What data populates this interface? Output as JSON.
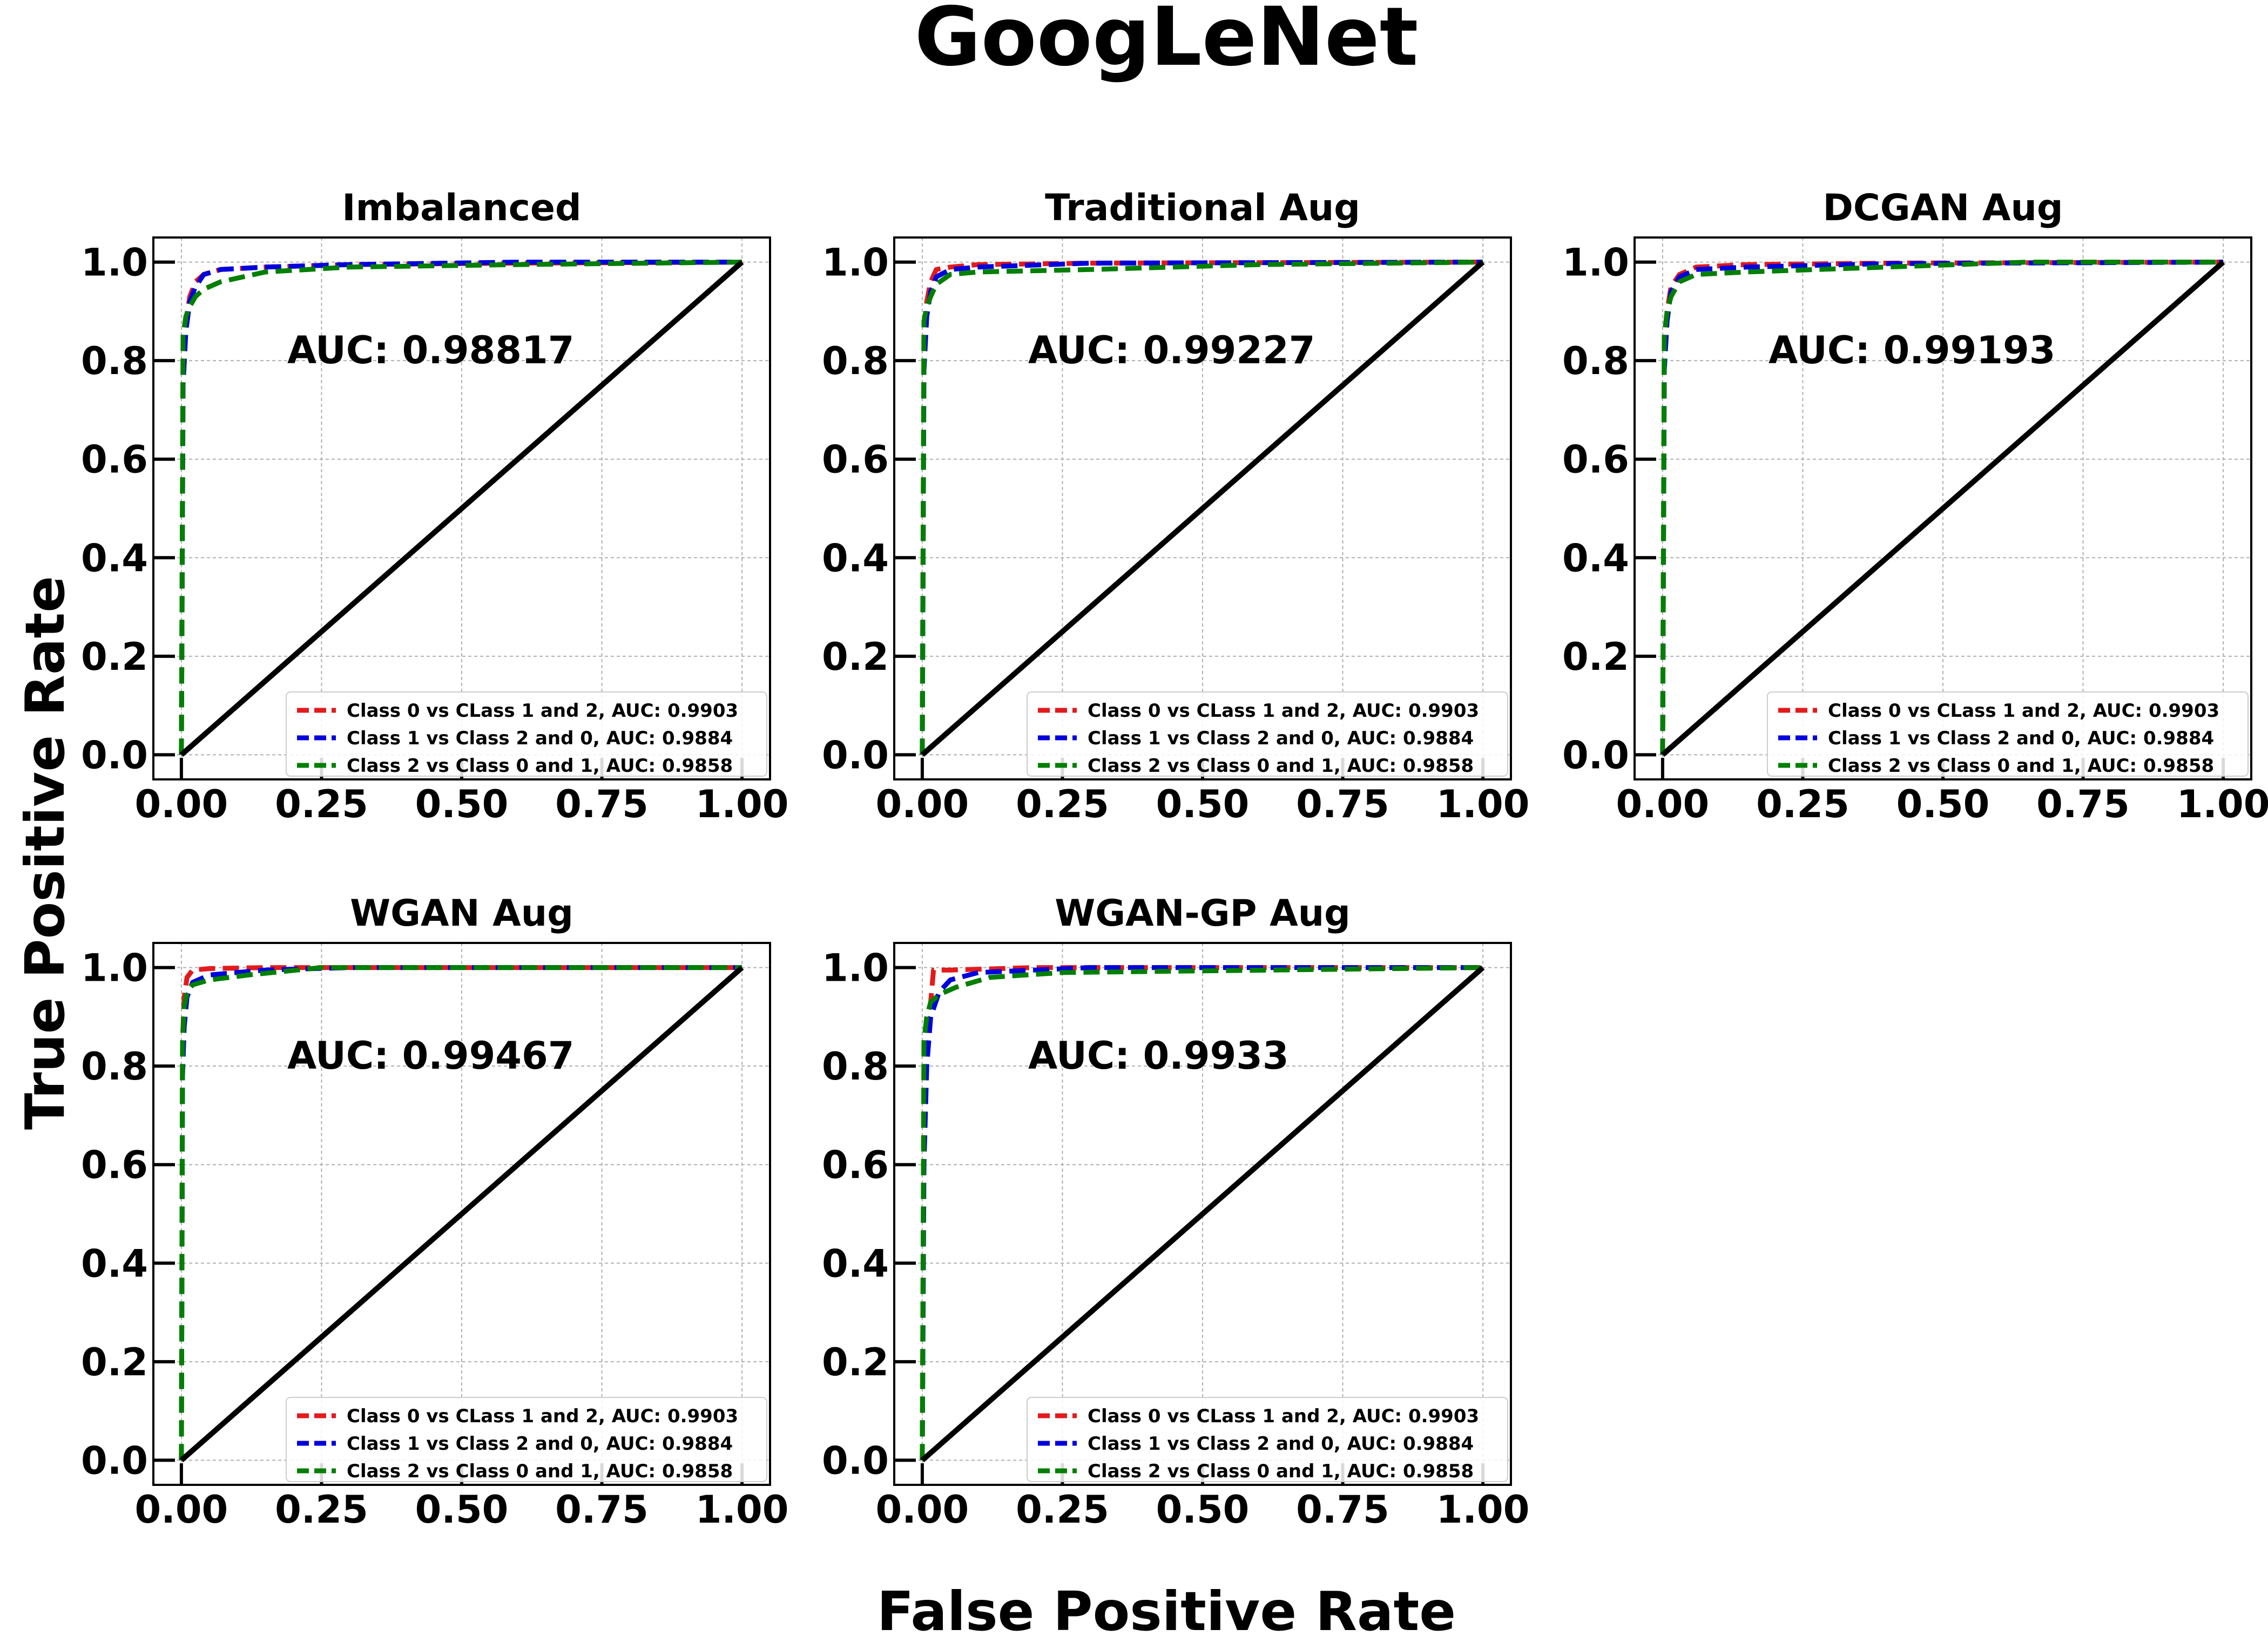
{
  "figure": {
    "suptitle": "GoogLeNet",
    "xlabel": "False Positive Rate",
    "ylabel": "True Positive Rate"
  },
  "chart_data": [
    {
      "type": "line",
      "title": "Imbalanced",
      "annotation": "AUC: 0.98817",
      "xlim": [
        -0.05,
        1.05
      ],
      "ylim": [
        -0.05,
        1.05
      ],
      "xticks": [
        0.0,
        0.25,
        0.5,
        0.75,
        1.0
      ],
      "xtick_labels": [
        "0.00",
        "0.25",
        "0.50",
        "0.75",
        "1.00"
      ],
      "yticks": [
        0.0,
        0.2,
        0.4,
        0.6,
        0.8,
        1.0
      ],
      "ytick_labels": [
        "0.0",
        "0.2",
        "0.4",
        "0.6",
        "0.8",
        "1.0"
      ],
      "grid": true,
      "legend_position": "lower-right",
      "series": [
        {
          "name": "Class 0 vs CLass 1 and 2, AUC: 0.9903",
          "color": "#e31a1c",
          "style": "dashed",
          "x": [
            0,
            0.003,
            0.008,
            0.015,
            0.025,
            0.04,
            0.07,
            0.15,
            0.3,
            0.6,
            1.0
          ],
          "y": [
            0,
            0.78,
            0.88,
            0.93,
            0.96,
            0.975,
            0.985,
            0.99,
            0.995,
            0.998,
            1.0
          ]
        },
        {
          "name": "Class 1 vs Class 2 and 0, AUC:  0.9884",
          "color": "#0000dd",
          "style": "dashed",
          "x": [
            0,
            0.003,
            0.008,
            0.015,
            0.025,
            0.04,
            0.07,
            0.15,
            0.3,
            0.6,
            1.0
          ],
          "y": [
            0,
            0.75,
            0.86,
            0.92,
            0.95,
            0.975,
            0.985,
            0.99,
            0.995,
            1.0,
            1.0
          ]
        },
        {
          "name": "Class 2 vs Class 0 and 1, AUC: 0.9858",
          "color": "#007f00",
          "style": "dashed",
          "x": [
            0,
            0.003,
            0.008,
            0.015,
            0.025,
            0.04,
            0.07,
            0.15,
            0.3,
            0.6,
            1.0
          ],
          "y": [
            0,
            0.85,
            0.89,
            0.91,
            0.93,
            0.945,
            0.96,
            0.98,
            0.99,
            0.995,
            1.0
          ]
        },
        {
          "name": "",
          "color": "#000000",
          "style": "solid",
          "x": [
            0,
            1
          ],
          "y": [
            0,
            1
          ]
        }
      ]
    },
    {
      "type": "line",
      "title": "Traditional Aug",
      "annotation": "AUC: 0.99227",
      "xlim": [
        -0.05,
        1.05
      ],
      "ylim": [
        -0.05,
        1.05
      ],
      "xticks": [
        0.0,
        0.25,
        0.5,
        0.75,
        1.0
      ],
      "xtick_labels": [
        "0.00",
        "0.25",
        "0.50",
        "0.75",
        "1.00"
      ],
      "yticks": [
        0.0,
        0.2,
        0.4,
        0.6,
        0.8,
        1.0
      ],
      "ytick_labels": [
        "0.0",
        "0.2",
        "0.4",
        "0.6",
        "0.8",
        "1.0"
      ],
      "grid": true,
      "legend_position": "lower-right",
      "series": [
        {
          "name": "Class 0 vs CLass 1 and 2, AUC: 0.9903",
          "color": "#e31a1c",
          "style": "dashed",
          "x": [
            0,
            0.003,
            0.008,
            0.015,
            0.025,
            0.05,
            0.1,
            0.3,
            1.0
          ],
          "y": [
            0,
            0.82,
            0.92,
            0.96,
            0.985,
            0.99,
            0.995,
            0.998,
            1.0
          ]
        },
        {
          "name": "Class 1 vs Class 2 and 0, AUC:  0.9884",
          "color": "#0000dd",
          "style": "dashed",
          "x": [
            0,
            0.003,
            0.008,
            0.015,
            0.025,
            0.05,
            0.1,
            0.3,
            1.0
          ],
          "y": [
            0,
            0.78,
            0.89,
            0.94,
            0.97,
            0.985,
            0.99,
            0.998,
            1.0
          ]
        },
        {
          "name": "Class 2 vs Class 0 and 1, AUC: 0.9858",
          "color": "#007f00",
          "style": "dashed",
          "x": [
            0,
            0.003,
            0.008,
            0.015,
            0.025,
            0.05,
            0.1,
            0.3,
            0.6,
            1.0
          ],
          "y": [
            0,
            0.88,
            0.91,
            0.93,
            0.955,
            0.975,
            0.98,
            0.985,
            0.995,
            1.0
          ]
        },
        {
          "name": "",
          "color": "#000000",
          "style": "solid",
          "x": [
            0,
            1
          ],
          "y": [
            0,
            1
          ]
        }
      ]
    },
    {
      "type": "line",
      "title": "DCGAN Aug",
      "annotation": "AUC: 0.99193",
      "xlim": [
        -0.05,
        1.05
      ],
      "ylim": [
        -0.05,
        1.05
      ],
      "xticks": [
        0.0,
        0.25,
        0.5,
        0.75,
        1.0
      ],
      "xtick_labels": [
        "0.00",
        "0.25",
        "0.50",
        "0.75",
        "1.00"
      ],
      "yticks": [
        0.0,
        0.2,
        0.4,
        0.6,
        0.8,
        1.0
      ],
      "ytick_labels": [
        "0.0",
        "0.2",
        "0.4",
        "0.6",
        "0.8",
        "1.0"
      ],
      "grid": true,
      "legend_position": "lower-right",
      "series": [
        {
          "name": "Class 0 vs CLass 1 and 2, AUC: 0.9903",
          "color": "#e31a1c",
          "style": "dashed",
          "x": [
            0,
            0.003,
            0.008,
            0.015,
            0.03,
            0.06,
            0.15,
            0.4,
            1.0
          ],
          "y": [
            0,
            0.8,
            0.9,
            0.95,
            0.975,
            0.99,
            0.995,
            0.998,
            1.0
          ]
        },
        {
          "name": "Class 1 vs Class 2 and 0, AUC:  0.9884",
          "color": "#0000dd",
          "style": "dashed",
          "x": [
            0,
            0.003,
            0.008,
            0.015,
            0.03,
            0.06,
            0.15,
            0.4,
            1.0
          ],
          "y": [
            0,
            0.78,
            0.88,
            0.94,
            0.97,
            0.985,
            0.99,
            0.997,
            1.0
          ]
        },
        {
          "name": "Class 2 vs Class 0 and 1, AUC: 0.9858",
          "color": "#007f00",
          "style": "dashed",
          "x": [
            0,
            0.003,
            0.008,
            0.015,
            0.03,
            0.06,
            0.15,
            0.4,
            0.65,
            1.0
          ],
          "y": [
            0,
            0.85,
            0.9,
            0.93,
            0.96,
            0.975,
            0.98,
            0.99,
            1.0,
            1.0
          ]
        },
        {
          "name": "",
          "color": "#000000",
          "style": "solid",
          "x": [
            0,
            1
          ],
          "y": [
            0,
            1
          ]
        }
      ]
    },
    {
      "type": "line",
      "title": "WGAN Aug",
      "annotation": "AUC: 0.99467",
      "xlim": [
        -0.05,
        1.05
      ],
      "ylim": [
        -0.05,
        1.05
      ],
      "xticks": [
        0.0,
        0.25,
        0.5,
        0.75,
        1.0
      ],
      "xtick_labels": [
        "0.00",
        "0.25",
        "0.50",
        "0.75",
        "1.00"
      ],
      "yticks": [
        0.0,
        0.2,
        0.4,
        0.6,
        0.8,
        1.0
      ],
      "ytick_labels": [
        "0.0",
        "0.2",
        "0.4",
        "0.6",
        "0.8",
        "1.0"
      ],
      "grid": true,
      "legend_position": "lower-right",
      "series": [
        {
          "name": "Class 0 vs CLass 1 and 2, AUC: 0.9903",
          "color": "#e31a1c",
          "style": "dashed",
          "x": [
            0,
            0.002,
            0.005,
            0.01,
            0.02,
            0.05,
            0.15,
            1.0
          ],
          "y": [
            0,
            0.85,
            0.94,
            0.98,
            0.995,
            0.998,
            1.0,
            1.0
          ]
        },
        {
          "name": "Class 1 vs Class 2 and 0, AUC:  0.9884",
          "color": "#0000dd",
          "style": "dashed",
          "x": [
            0,
            0.002,
            0.005,
            0.01,
            0.02,
            0.05,
            0.15,
            0.3,
            1.0
          ],
          "y": [
            0,
            0.78,
            0.88,
            0.94,
            0.97,
            0.985,
            0.995,
            1.0,
            1.0
          ]
        },
        {
          "name": "Class 2 vs Class 0 and 1, AUC: 0.9858",
          "color": "#007f00",
          "style": "dashed",
          "x": [
            0,
            0.002,
            0.005,
            0.01,
            0.02,
            0.05,
            0.12,
            0.25,
            1.0
          ],
          "y": [
            0,
            0.85,
            0.92,
            0.95,
            0.965,
            0.975,
            0.985,
            1.0,
            1.0
          ]
        },
        {
          "name": "",
          "color": "#000000",
          "style": "solid",
          "x": [
            0,
            1
          ],
          "y": [
            0,
            1
          ]
        }
      ]
    },
    {
      "type": "line",
      "title": "WGAN-GP Aug",
      "annotation": "AUC: 0.9933",
      "xlim": [
        -0.05,
        1.05
      ],
      "ylim": [
        -0.05,
        1.05
      ],
      "xticks": [
        0.0,
        0.25,
        0.5,
        0.75,
        1.0
      ],
      "xtick_labels": [
        "0.00",
        "0.25",
        "0.50",
        "0.75",
        "1.00"
      ],
      "yticks": [
        0.0,
        0.2,
        0.4,
        0.6,
        0.8,
        1.0
      ],
      "ytick_labels": [
        "0.0",
        "0.2",
        "0.4",
        "0.6",
        "0.8",
        "1.0"
      ],
      "grid": true,
      "legend_position": "lower-right",
      "series": [
        {
          "name": "Class 0 vs CLass 1 and 2, AUC: 0.9903",
          "color": "#e31a1c",
          "style": "dashed",
          "x": [
            0,
            0.003,
            0.008,
            0.015,
            0.02,
            0.05,
            0.2,
            1.0
          ],
          "y": [
            0,
            0.7,
            0.85,
            0.93,
            0.995,
            0.995,
            1.0,
            1.0
          ]
        },
        {
          "name": "Class 1 vs Class 2 and 0, AUC:  0.9884",
          "color": "#0000dd",
          "style": "dashed",
          "x": [
            0,
            0.003,
            0.008,
            0.015,
            0.03,
            0.05,
            0.1,
            0.3,
            1.0
          ],
          "y": [
            0,
            0.6,
            0.8,
            0.9,
            0.95,
            0.975,
            0.99,
            1.0,
            1.0
          ]
        },
        {
          "name": "Class 2 vs Class 0 and 1, AUC: 0.9858",
          "color": "#007f00",
          "style": "dashed",
          "x": [
            0,
            0.003,
            0.008,
            0.015,
            0.03,
            0.06,
            0.12,
            0.25,
            1.0
          ],
          "y": [
            0,
            0.85,
            0.9,
            0.93,
            0.945,
            0.96,
            0.98,
            0.99,
            1.0
          ]
        },
        {
          "name": "",
          "color": "#000000",
          "style": "solid",
          "x": [
            0,
            1
          ],
          "y": [
            0,
            1
          ]
        }
      ]
    }
  ]
}
